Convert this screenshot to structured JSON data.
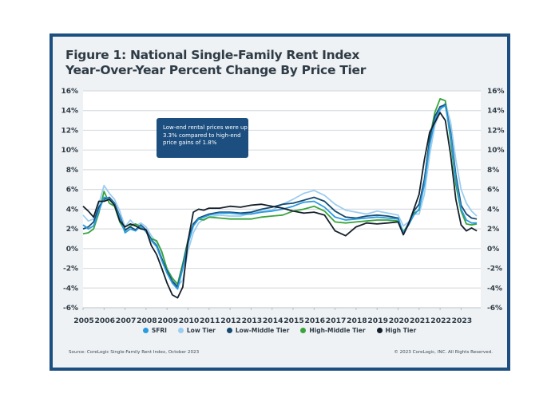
{
  "chart_data": {
    "type": "line",
    "title": "Figure 1: National Single-Family Rent Index",
    "subtitle": "Year-Over-Year Percent Change By Price Tier",
    "xlabel": "",
    "ylabel": "",
    "ylim": [
      -6,
      16
    ],
    "xlim": [
      2005,
      2023.85
    ],
    "yticks": [
      "16%",
      "14%",
      "12%",
      "10%",
      "8%",
      "6%",
      "4%",
      "2%",
      "0%",
      "-2%",
      "-4%",
      "-6%"
    ],
    "ytick_values": [
      16,
      14,
      12,
      10,
      8,
      6,
      4,
      2,
      0,
      -2,
      -4,
      -6
    ],
    "xticks": [
      "2005",
      "2006",
      "2007",
      "2008",
      "2009",
      "2010",
      "2011",
      "2012",
      "2013",
      "2014",
      "2015",
      "2016",
      "2017",
      "2018",
      "2019",
      "2020",
      "2021",
      "2022",
      "2023"
    ],
    "grid": true,
    "legend_position": "bottom",
    "annotation": "Low-end rental prices were up 3.3% compared to high-end price gains of 1.8%",
    "x": [
      2005.0,
      2005.25,
      2005.5,
      2005.75,
      2006.0,
      2006.25,
      2006.5,
      2006.75,
      2007.0,
      2007.25,
      2007.5,
      2007.75,
      2008.0,
      2008.25,
      2008.5,
      2008.75,
      2009.0,
      2009.25,
      2009.5,
      2009.75,
      2010.0,
      2010.25,
      2010.5,
      2010.75,
      2011.0,
      2011.5,
      2012.0,
      2012.5,
      2013.0,
      2013.5,
      2014.0,
      2014.5,
      2015.0,
      2015.5,
      2016.0,
      2016.5,
      2017.0,
      2017.5,
      2018.0,
      2018.5,
      2019.0,
      2019.5,
      2020.0,
      2020.25,
      2020.5,
      2020.75,
      2021.0,
      2021.25,
      2021.5,
      2021.75,
      2022.0,
      2022.25,
      2022.5,
      2022.75,
      2023.0,
      2023.25,
      2023.5,
      2023.75
    ],
    "series": [
      {
        "name": "SFRI",
        "color": "#2a9be0",
        "values": [
          2.4,
          2.0,
          2.3,
          3.8,
          5.2,
          5.1,
          4.5,
          3.2,
          1.6,
          2.0,
          1.8,
          2.3,
          1.7,
          0.8,
          0.2,
          -1.2,
          -2.5,
          -3.5,
          -4.1,
          -2.0,
          0.5,
          2.3,
          3.0,
          3.2,
          3.4,
          3.6,
          3.6,
          3.5,
          3.5,
          3.7,
          3.8,
          4.0,
          4.3,
          4.7,
          4.8,
          4.2,
          3.2,
          2.9,
          3.0,
          3.1,
          3.2,
          3.1,
          3.0,
          1.6,
          2.4,
          3.4,
          4.0,
          6.5,
          10.5,
          13.0,
          14.2,
          14.5,
          11.5,
          7.0,
          4.0,
          2.9,
          2.6,
          2.6
        ]
      },
      {
        "name": "Low Tier",
        "color": "#9ccdf0",
        "values": [
          3.4,
          2.8,
          3.0,
          4.5,
          6.4,
          5.6,
          5.0,
          3.8,
          2.2,
          2.9,
          2.3,
          2.6,
          2.2,
          1.3,
          0.6,
          -0.5,
          -2.0,
          -3.0,
          -3.8,
          -3.2,
          -0.2,
          1.6,
          2.6,
          3.0,
          3.2,
          3.4,
          3.3,
          3.3,
          3.6,
          3.8,
          3.9,
          4.5,
          5.0,
          5.6,
          5.9,
          5.4,
          4.5,
          3.9,
          3.7,
          3.5,
          3.8,
          3.6,
          3.4,
          2.3,
          2.7,
          3.5,
          3.5,
          5.5,
          9.5,
          12.5,
          14.0,
          14.8,
          12.8,
          9.0,
          6.0,
          4.6,
          3.8,
          3.3
        ]
      },
      {
        "name": "Low-Middle Tier",
        "color": "#164a70",
        "values": [
          2.0,
          2.2,
          2.7,
          4.2,
          5.0,
          5.2,
          4.6,
          3.3,
          1.9,
          2.2,
          1.9,
          2.4,
          1.9,
          0.9,
          0.3,
          -1.0,
          -2.3,
          -3.3,
          -3.9,
          -1.8,
          0.8,
          2.5,
          3.1,
          3.3,
          3.5,
          3.7,
          3.7,
          3.6,
          3.7,
          4.0,
          4.2,
          4.5,
          4.6,
          4.9,
          5.2,
          4.8,
          3.8,
          3.2,
          3.1,
          3.3,
          3.4,
          3.3,
          3.1,
          1.5,
          2.6,
          3.8,
          4.5,
          7.0,
          11.0,
          13.4,
          14.4,
          14.6,
          11.8,
          7.5,
          4.4,
          3.5,
          3.1,
          3.0
        ]
      },
      {
        "name": "High-Middle Tier",
        "color": "#38a43b",
        "values": [
          1.5,
          1.6,
          2.0,
          3.6,
          5.8,
          4.6,
          4.3,
          2.7,
          1.8,
          2.3,
          2.5,
          2.2,
          1.8,
          1.0,
          0.8,
          -0.3,
          -2.1,
          -3.0,
          -3.6,
          -1.5,
          0.9,
          2.4,
          3.0,
          2.9,
          3.2,
          3.1,
          3.0,
          3.0,
          3.0,
          3.2,
          3.3,
          3.4,
          3.8,
          4.0,
          4.3,
          3.8,
          2.7,
          2.6,
          2.7,
          2.8,
          2.9,
          2.9,
          2.8,
          1.7,
          2.5,
          3.6,
          3.9,
          6.8,
          11.2,
          13.8,
          15.2,
          15.0,
          11.0,
          6.5,
          3.8,
          2.5,
          2.4,
          2.5
        ]
      },
      {
        "name": "High Tier",
        "color": "#15202a",
        "values": [
          4.3,
          3.8,
          3.2,
          4.8,
          4.8,
          5.0,
          4.4,
          2.8,
          2.2,
          2.5,
          2.3,
          2.0,
          1.9,
          0.3,
          -0.6,
          -2.0,
          -3.5,
          -4.7,
          -5.0,
          -3.9,
          0.8,
          3.7,
          4.0,
          3.9,
          4.1,
          4.1,
          4.3,
          4.2,
          4.4,
          4.5,
          4.3,
          4.1,
          3.8,
          3.6,
          3.7,
          3.4,
          1.8,
          1.3,
          2.2,
          2.6,
          2.5,
          2.6,
          2.7,
          1.4,
          2.5,
          4.0,
          5.5,
          9.0,
          11.8,
          12.8,
          13.8,
          13.0,
          9.5,
          5.0,
          2.4,
          1.8,
          2.1,
          1.8
        ]
      }
    ]
  },
  "footer": {
    "source": "Source: CoreLogic Single-Family Rent Index, October 2023",
    "copyright": "© 2023 CoreLogic, INC. All Rights Reserved."
  }
}
